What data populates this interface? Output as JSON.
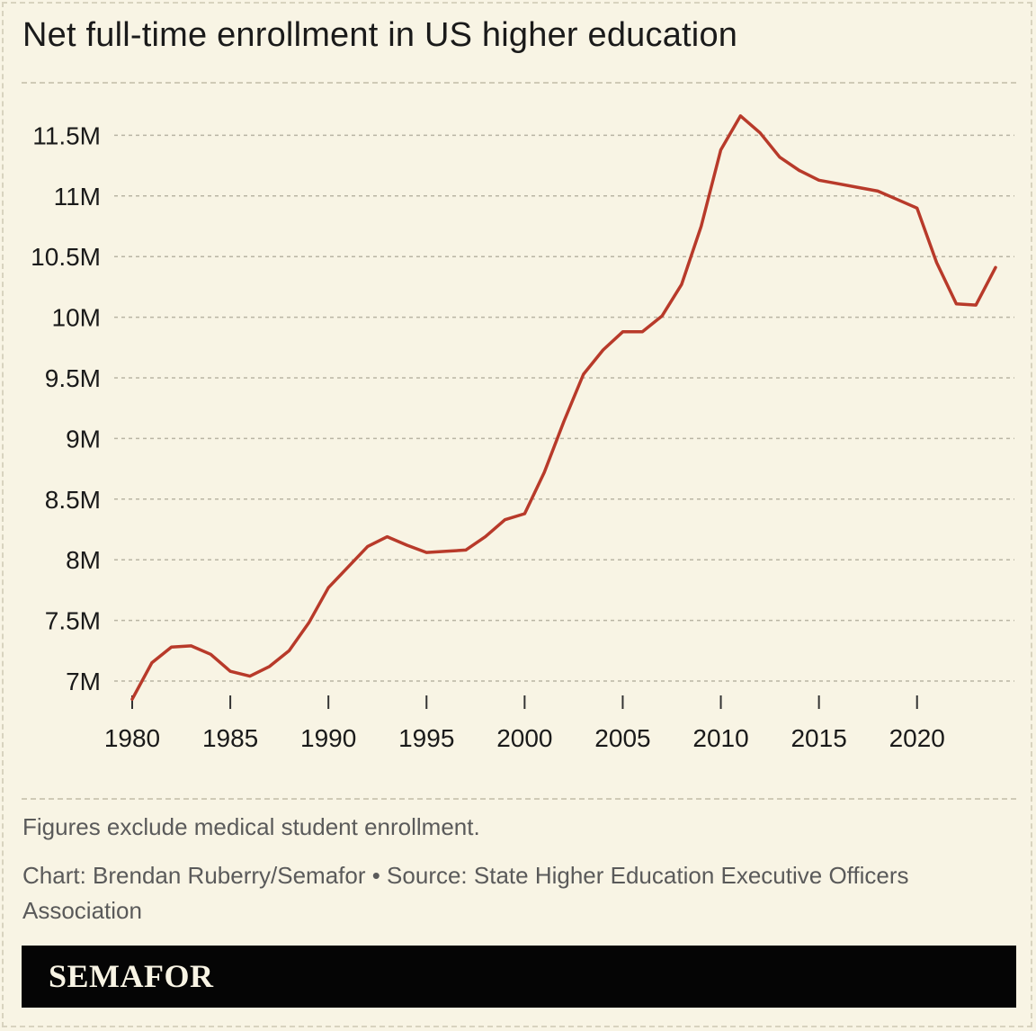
{
  "header": {
    "title": "Net full-time enrollment in US higher education"
  },
  "footer": {
    "note": "Figures exclude medical student enrollment.",
    "credit": "Chart: Brendan Ruberry/Semafor • Source: State Higher Education Executive Officers Association",
    "brand": "SEMAFOR"
  },
  "colors": {
    "line": "#b83a2a",
    "background": "#f8f4e4",
    "grid": "#b9b5a4"
  },
  "chart_data": {
    "type": "line",
    "title": "Net full-time enrollment in US higher education",
    "xlabel": "",
    "ylabel": "",
    "xlim": [
      1980,
      2024
    ],
    "ylim": [
      6.85,
      11.85
    ],
    "grid": true,
    "x_ticks": [
      1980,
      1985,
      1990,
      1995,
      2000,
      2005,
      2010,
      2015,
      2020
    ],
    "x_tick_labels": [
      "1980",
      "1985",
      "1990",
      "1995",
      "2000",
      "2005",
      "2010",
      "2015",
      "2020"
    ],
    "y_ticks": [
      7,
      7.5,
      8,
      8.5,
      9,
      9.5,
      10,
      10.5,
      11,
      11.5
    ],
    "y_tick_labels": [
      "7M",
      "7.5M",
      "8M",
      "8.5M",
      "9M",
      "9.5M",
      "10M",
      "10.5M",
      "11M",
      "11.5M"
    ],
    "series": [
      {
        "name": "",
        "x": [
          1980,
          1981,
          1982,
          1983,
          1984,
          1985,
          1986,
          1987,
          1988,
          1989,
          1990,
          1991,
          1992,
          1993,
          1994,
          1995,
          1996,
          1997,
          1998,
          1999,
          2000,
          2001,
          2002,
          2003,
          2004,
          2005,
          2006,
          2007,
          2008,
          2009,
          2010,
          2011,
          2012,
          2013,
          2014,
          2015,
          2016,
          2017,
          2018,
          2019,
          2020,
          2021,
          2022,
          2023,
          2024
        ],
        "values": [
          6.85,
          7.15,
          7.28,
          7.29,
          7.22,
          7.08,
          7.04,
          7.12,
          7.25,
          7.48,
          7.77,
          7.94,
          8.11,
          8.19,
          8.12,
          8.06,
          8.07,
          8.08,
          8.19,
          8.33,
          8.38,
          8.72,
          9.14,
          9.53,
          9.73,
          9.88,
          9.88,
          10.01,
          10.27,
          10.75,
          11.38,
          11.66,
          11.52,
          11.32,
          11.21,
          11.13,
          11.1,
          11.07,
          11.04,
          10.97,
          10.9,
          10.45,
          10.11,
          10.1,
          10.41
        ]
      }
    ]
  }
}
